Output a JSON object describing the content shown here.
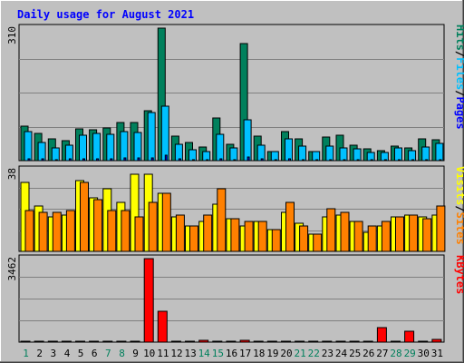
{
  "chart_data": {
    "type": "bar",
    "title": "Daily usage for August 2021",
    "x": [
      "1",
      "2",
      "3",
      "4",
      "5",
      "6",
      "7",
      "8",
      "9",
      "10",
      "11",
      "12",
      "13",
      "14",
      "15",
      "16",
      "17",
      "18",
      "19",
      "20",
      "21",
      "22",
      "23",
      "24",
      "25",
      "26",
      "27",
      "28",
      "29",
      "30",
      "31"
    ],
    "weekend_days": [
      "1",
      "7",
      "8",
      "14",
      "15",
      "21",
      "22",
      "28",
      "29"
    ],
    "panels": [
      {
        "name": "hits-files-pages",
        "max_label": "310",
        "ylim": [
          0,
          310
        ],
        "side_labels": [
          "Pages",
          "/",
          "Files",
          "/",
          "Hits"
        ],
        "series": [
          {
            "name": "Hits",
            "color": "#00805c",
            "values": [
              81,
              64,
              52,
              47,
              75,
              72,
              77,
              90,
              89,
              116,
              310,
              58,
              42,
              31,
              100,
              38,
              274,
              57,
              22,
              68,
              51,
              21,
              55,
              59,
              36,
              28,
              24,
              34,
              29,
              52,
              48
            ]
          },
          {
            "name": "Files",
            "color": "#00c0ff",
            "values": [
              68,
              42,
              30,
              36,
              59,
              64,
              61,
              67,
              66,
              112,
              128,
              38,
              26,
              22,
              62,
              30,
              95,
              36,
              21,
              52,
              34,
              21,
              34,
              29,
              28,
              20,
              20,
              29,
              24,
              31,
              40
            ]
          },
          {
            "name": "Pages",
            "color": "#0000ff",
            "values": [
              5,
              4,
              3,
              4,
              5,
              5,
              5,
              6,
              6,
              7,
              12,
              4,
              3,
              2,
              5,
              3,
              8,
              4,
              2,
              4,
              3,
              2,
              3,
              3,
              3,
              2,
              2,
              3,
              2,
              3,
              3
            ]
          }
        ]
      },
      {
        "name": "visits-sites",
        "max_label": "38",
        "ylim": [
          0,
          38
        ],
        "side_labels": [
          "Sites",
          "/",
          "Visits"
        ],
        "series": [
          {
            "name": "Visits",
            "color": "#ffff00",
            "values": [
              32,
              21,
              16,
              17,
              33,
              25,
              29,
              23,
              36,
              36,
              27,
              16,
              12,
              14,
              22,
              15,
              12,
              14,
              10,
              18,
              13,
              8,
              16,
              17,
              14,
              9,
              12,
              16,
              17,
              16,
              17
            ]
          },
          {
            "name": "Sites",
            "color": "#ff8000",
            "values": [
              19,
              18,
              18,
              19,
              32,
              24,
              19,
              19,
              16,
              23,
              27,
              17,
              12,
              17,
              29,
              15,
              14,
              14,
              10,
              23,
              12,
              8,
              20,
              18,
              14,
              12,
              14,
              16,
              17,
              15,
              21
            ]
          }
        ]
      },
      {
        "name": "kbytes",
        "max_label": "3462",
        "ylim": [
          0,
          3462
        ],
        "side_labels": [
          "KBytes"
        ],
        "series": [
          {
            "name": "KBytes",
            "color": "#ff0000",
            "values": [
              30,
              30,
              30,
              30,
              30,
              30,
              30,
              30,
              30,
              3462,
              1270,
              30,
              30,
              80,
              30,
              30,
              80,
              30,
              30,
              30,
              30,
              30,
              30,
              30,
              30,
              30,
              600,
              30,
              450,
              30,
              120
            ]
          }
        ]
      }
    ],
    "colors": {
      "background": "#c0c0c0",
      "plot": "#c0c0c0",
      "grid": "#808080",
      "title": "#0000ff",
      "weekday_label": "#000000",
      "weekend_label": "#00805c",
      "bar_outline": "#000000"
    }
  }
}
